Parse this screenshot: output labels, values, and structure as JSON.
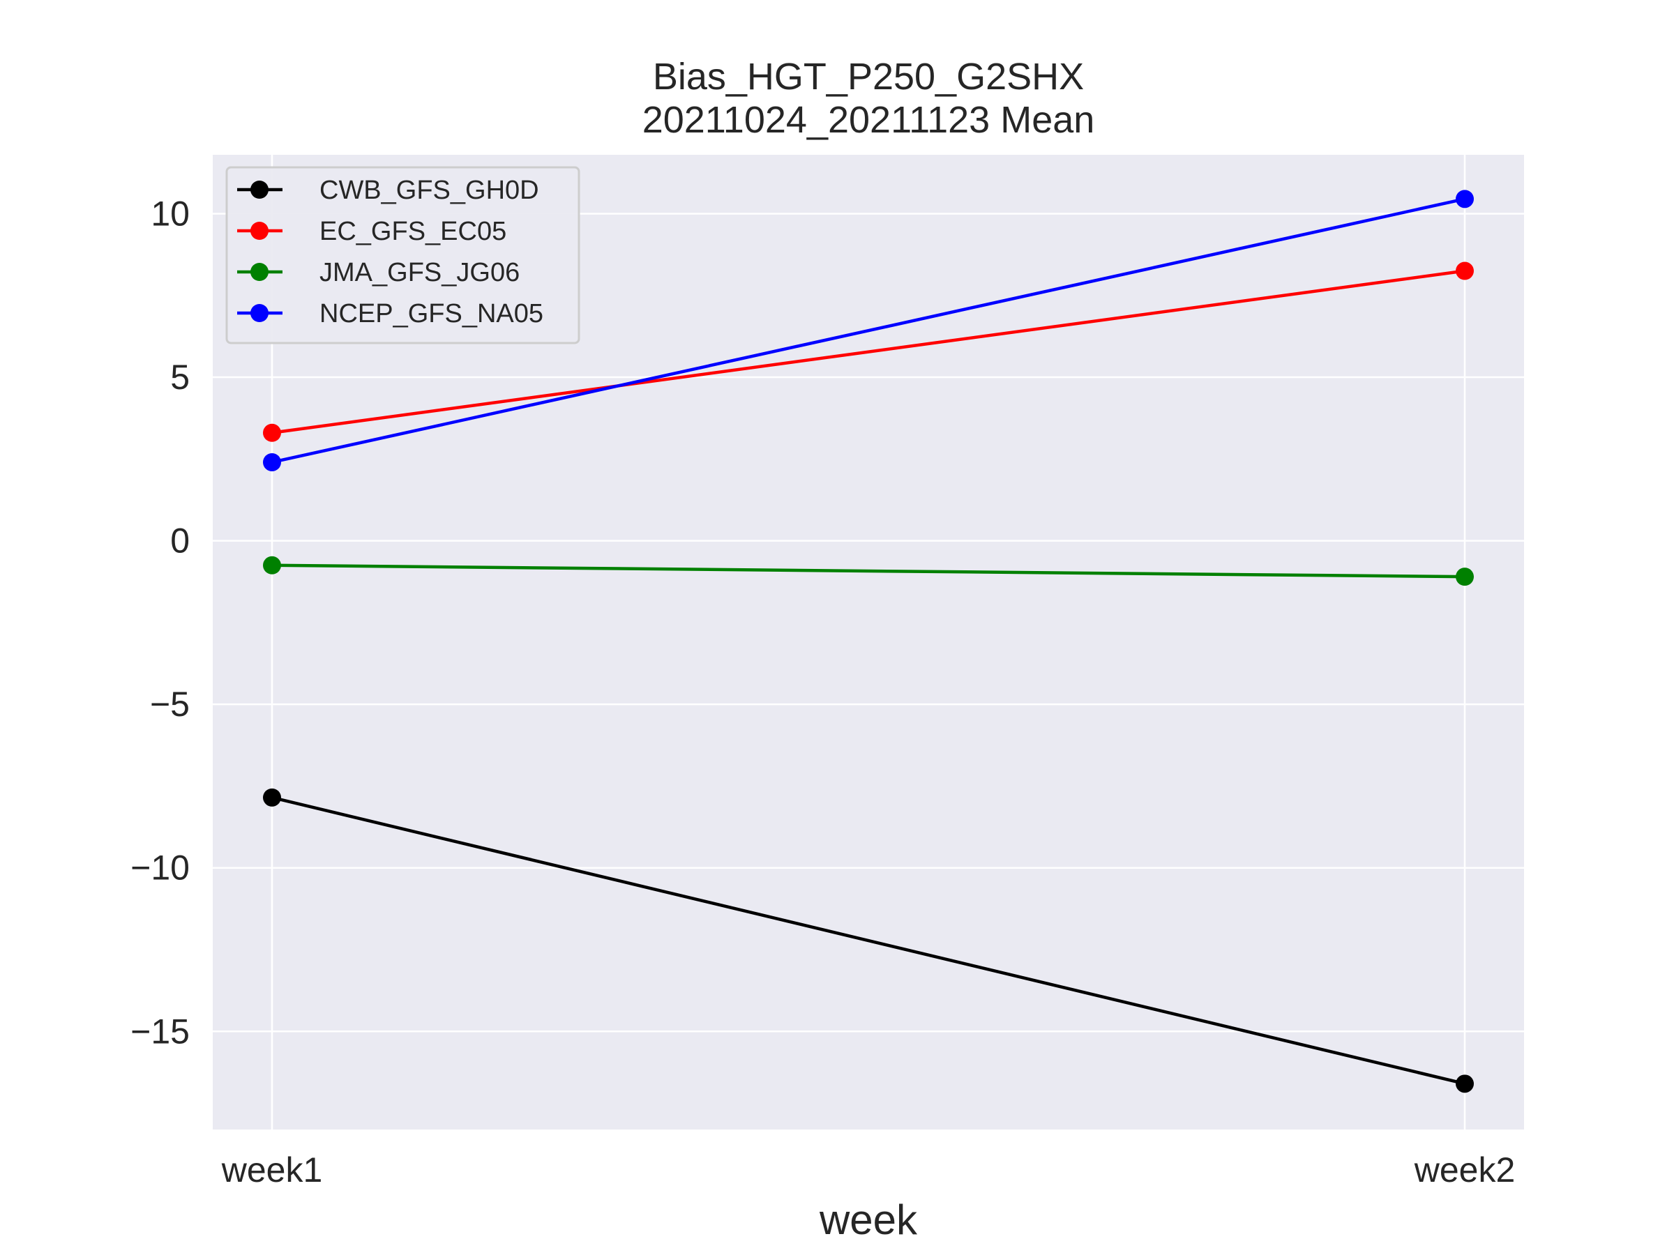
{
  "chart_data": {
    "type": "line",
    "title": [
      "Bias_HGT_P250_G2SHX",
      "20211024_20211123 Mean"
    ],
    "xlabel": "week",
    "ylabel": "",
    "categories": [
      "week1",
      "week2"
    ],
    "ylim": [
      -18,
      11.8
    ],
    "yticks": [
      10,
      5,
      0,
      -5,
      -10,
      -15
    ],
    "ytick_labels": [
      "10",
      "5",
      "0",
      "−5",
      "−10",
      "−15"
    ],
    "grid": true,
    "legend_position": "top-left",
    "series": [
      {
        "name": "CWB_GFS_GH0D",
        "color": "#000000",
        "values": [
          -7.85,
          -16.6
        ]
      },
      {
        "name": "EC_GFS_EC05",
        "color": "#ff0000",
        "values": [
          3.3,
          8.25
        ]
      },
      {
        "name": "JMA_GFS_JG06",
        "color": "#008000",
        "values": [
          -0.75,
          -1.1
        ]
      },
      {
        "name": "NCEP_GFS_NA05",
        "color": "#0000ff",
        "values": [
          2.4,
          10.45
        ]
      }
    ],
    "background": "#eaeaf2"
  }
}
